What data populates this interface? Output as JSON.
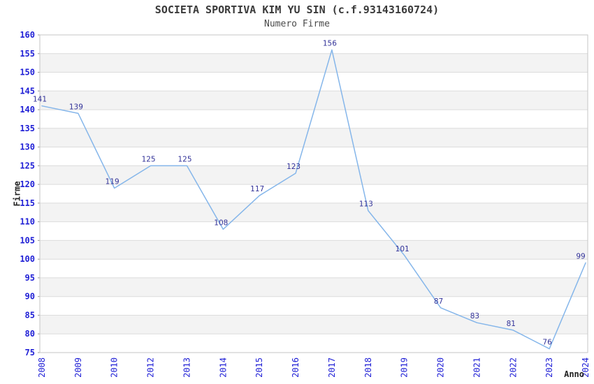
{
  "header": {
    "title": "SOCIETA SPORTIVA KIM YU SIN (c.f.93143160724)",
    "subtitle": "Numero Firme"
  },
  "chart_data": {
    "type": "line",
    "title": "SOCIETA SPORTIVA KIM YU SIN (c.f.93143160724)",
    "subtitle": "Numero Firme",
    "xlabel": "Anno",
    "ylabel": "Firme",
    "categories": [
      "2008",
      "2009",
      "2010",
      "2012",
      "2013",
      "2014",
      "2015",
      "2016",
      "2017",
      "2018",
      "2019",
      "2020",
      "2021",
      "2022",
      "2023",
      "2024"
    ],
    "values": [
      141,
      139,
      119,
      125,
      125,
      108,
      117,
      123,
      156,
      113,
      101,
      87,
      83,
      81,
      76,
      99
    ],
    "ylim": [
      75,
      160
    ],
    "ytick_step": 5,
    "grid": "horizontal",
    "band_fill": true,
    "legend_position": "none",
    "data_labels": true,
    "colors": {
      "line": "#85B6EA",
      "axis_tick_label": "#2020D6",
      "data_label": "#333399",
      "band": "#F3F3F3",
      "gridline": "#DCDCDC",
      "plot_border": "#C6C6C6",
      "tick_mark": "#999999",
      "title_text": "#3A3A3A",
      "axis_title_text": "#222222"
    }
  }
}
